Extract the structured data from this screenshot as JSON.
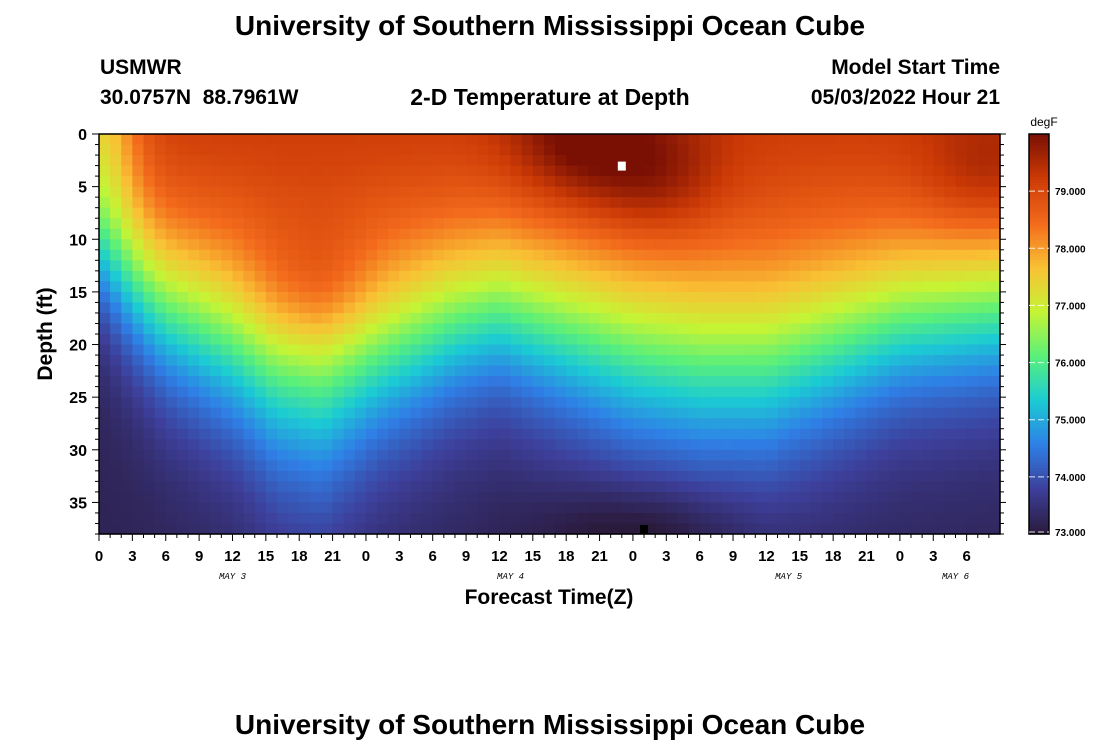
{
  "header": {
    "title": "University of Southern Mississippi Ocean Cube",
    "station_name": "USMWR",
    "station_coords": "30.0757N  88.7961W",
    "chart_title": "2-D Temperature at Depth",
    "model_label": "Model Start Time",
    "model_time": "05/03/2022 Hour 21",
    "footer_title": "University of Southern Mississippi Ocean Cube"
  },
  "chart_data": {
    "type": "heatmap",
    "title": "2-D Temperature at Depth",
    "xlabel": "Forecast Time(Z)",
    "ylabel": "Depth (ft)",
    "x_range_hours": [
      0,
      81
    ],
    "y_range_ft": [
      0,
      38
    ],
    "x_tick_labels": [
      "0",
      "3",
      "6",
      "9",
      "12",
      "15",
      "18",
      "21",
      "0",
      "3",
      "6",
      "9",
      "12",
      "15",
      "18",
      "21",
      "0",
      "3",
      "6",
      "9",
      "12",
      "15",
      "18",
      "21",
      "0",
      "3",
      "6"
    ],
    "y_ticks": [
      0,
      5,
      10,
      15,
      20,
      25,
      30,
      35
    ],
    "day_labels": [
      {
        "label": "MAY 3",
        "hour": 12
      },
      {
        "label": "MAY 4",
        "hour": 37
      },
      {
        "label": "MAY 5",
        "hour": 62
      },
      {
        "label": "MAY 6",
        "hour": 77
      }
    ],
    "colorbar": {
      "unit": "degF",
      "min": 73.0,
      "max": 80.0,
      "tick_values": [
        73,
        74,
        75,
        76,
        77,
        78,
        79
      ],
      "tick_labels": [
        "73.000",
        "74.000",
        "75.000",
        "76.000",
        "77.000",
        "78.000",
        "79.000"
      ],
      "colormap_stops": [
        "#2a1a3c",
        "#3d3f9a",
        "#2f7fe6",
        "#1bcbd4",
        "#5af07a",
        "#c6f434",
        "#f9c134",
        "#f36a1c",
        "#cc3a06",
        "#7a1004"
      ]
    },
    "thermocline_depth_ft": [
      {
        "hour": 0,
        "depth": 11
      },
      {
        "hour": 6,
        "depth": 16
      },
      {
        "hour": 12,
        "depth": 19
      },
      {
        "hour": 16,
        "depth": 22
      },
      {
        "hour": 20,
        "depth": 23
      },
      {
        "hour": 25,
        "depth": 20
      },
      {
        "hour": 32,
        "depth": 17
      },
      {
        "hour": 36,
        "depth": 16
      },
      {
        "hour": 42,
        "depth": 18
      },
      {
        "hour": 48,
        "depth": 20
      },
      {
        "hour": 54,
        "depth": 21
      },
      {
        "hour": 60,
        "depth": 21
      },
      {
        "hour": 66,
        "depth": 19
      },
      {
        "hour": 72,
        "depth": 17
      },
      {
        "hour": 81,
        "depth": 16
      }
    ],
    "warm_core": [
      {
        "hour": 19.5,
        "depth": 15,
        "strength": 0.9
      },
      {
        "hour": 43,
        "depth": 0.5,
        "strength": 1.6
      },
      {
        "hour": 50,
        "depth": 4,
        "strength": 1.3
      },
      {
        "hour": 80,
        "depth": 4,
        "strength": 1.0
      }
    ],
    "surface_warm_temp_degF": 79.4,
    "bottom_temp_degF": 73.2,
    "markers": [
      {
        "hour": 47,
        "depth": 3,
        "color": "#ffffff"
      },
      {
        "hour": 49,
        "depth": 38,
        "color": "#000000"
      }
    ]
  }
}
